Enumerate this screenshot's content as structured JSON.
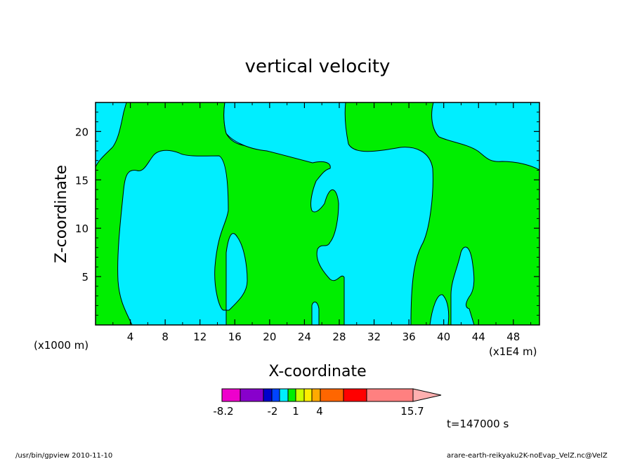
{
  "chart_data": {
    "type": "heatmap",
    "title": "vertical velocity",
    "xlabel": "X-coordinate",
    "ylabel": "Z-coordinate",
    "x_unit_left": "(x1000 m)",
    "x_unit_right": "(x1E4 m)",
    "xlim": [
      0,
      51
    ],
    "ylim": [
      0,
      23
    ],
    "x_ticks": [
      "4",
      "8",
      "12",
      "16",
      "20",
      "24",
      "28",
      "32",
      "36",
      "40",
      "44",
      "48"
    ],
    "y_ticks": [
      "5",
      "10",
      "15",
      "20"
    ],
    "field_colors": {
      "low": "#00eeff",
      "high": "#00ee00"
    },
    "colorbar": {
      "colors": [
        "#ee00cc",
        "#8800cc",
        "#0000cc",
        "#0044ff",
        "#00eeff",
        "#00ee00",
        "#ccff00",
        "#ffee00",
        "#ffaa00",
        "#ff6600",
        "#ff0000",
        "#ff8080",
        "#ffb0b0"
      ],
      "labels": [
        "-8.2",
        "-2",
        "1",
        "4",
        "15.7"
      ]
    },
    "time_label": "t=147000 s"
  },
  "footer": {
    "left": "/usr/bin/gpview   2010-11-10",
    "right": "arare-earth-reikyaku2K-noEvap_VelZ.nc@VelZ"
  }
}
